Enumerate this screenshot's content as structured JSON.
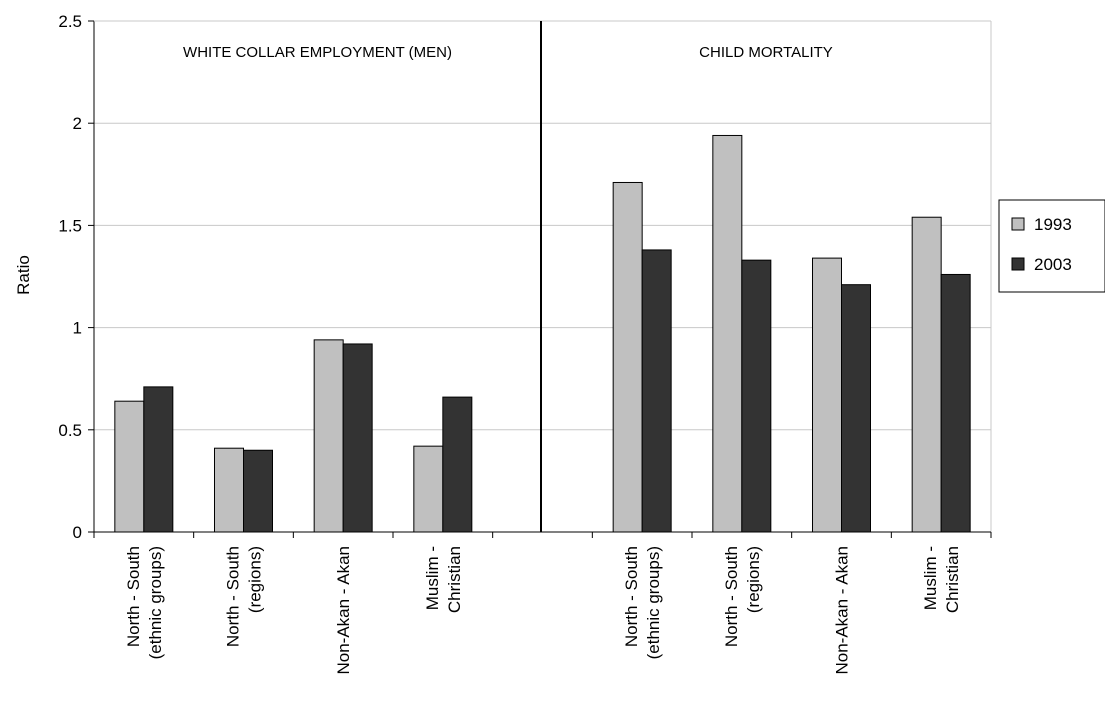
{
  "chart_data": {
    "type": "bar",
    "ylabel": "Ratio",
    "ylim": [
      0,
      2.5
    ],
    "yticks": [
      "0",
      "0.5",
      "1",
      "1.5",
      "2",
      "2.5"
    ],
    "grid": true,
    "legend_position": "right",
    "panels": [
      {
        "title": "WHITE COLLAR EMPLOYMENT (MEN)",
        "categories": [
          [
            "North - South",
            "(ethnic groups)"
          ],
          [
            "North - South",
            "(regions)"
          ],
          [
            "Non-Akan - Akan"
          ],
          [
            "Muslim -",
            "Christian"
          ]
        ],
        "series": [
          {
            "name": "1993",
            "values": [
              0.64,
              0.41,
              0.94,
              0.42
            ]
          },
          {
            "name": "2003",
            "values": [
              0.71,
              0.4,
              0.92,
              0.66
            ]
          }
        ]
      },
      {
        "title": "CHILD MORTALITY",
        "categories": [
          [
            "North - South",
            "(ethnic groups)"
          ],
          [
            "North - South",
            "(regions)"
          ],
          [
            "Non-Akan - Akan"
          ],
          [
            "Muslim -",
            "Christian"
          ]
        ],
        "series": [
          {
            "name": "1993",
            "values": [
              1.71,
              1.94,
              1.34,
              1.54
            ]
          },
          {
            "name": "2003",
            "values": [
              1.38,
              1.33,
              1.21,
              1.26
            ]
          }
        ]
      }
    ],
    "colors": {
      "1993": "#c0c0c0",
      "2003": "#333333"
    }
  }
}
